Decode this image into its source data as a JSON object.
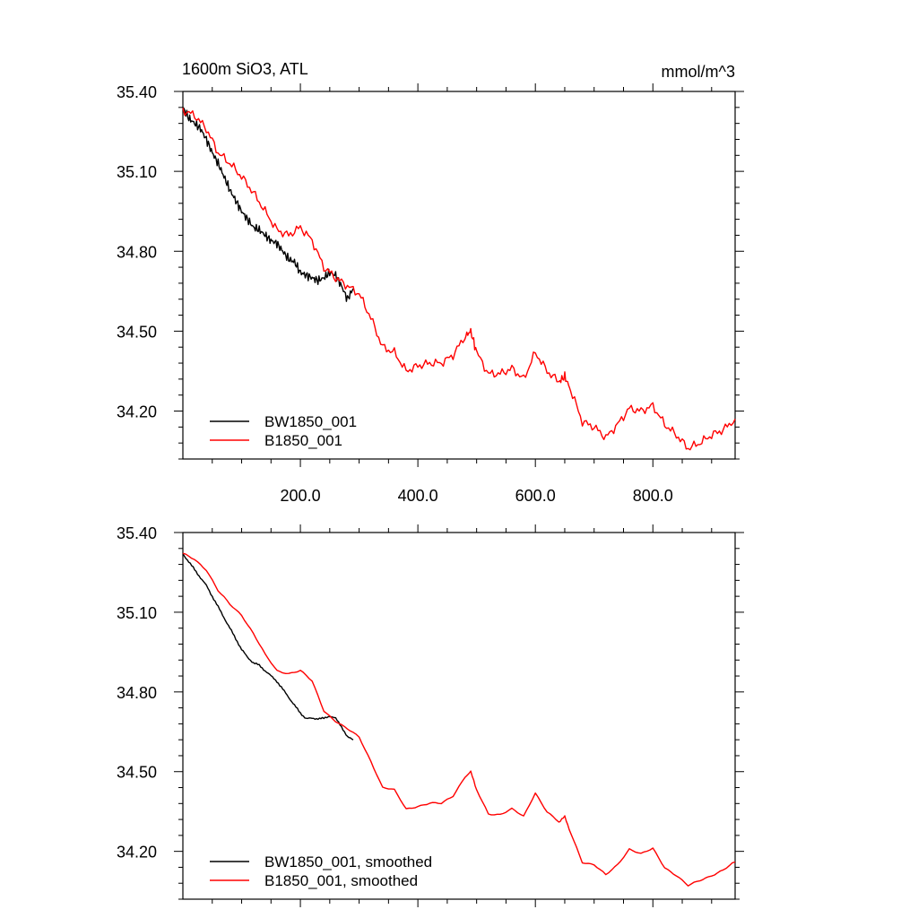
{
  "figure": {
    "title_left": "1600m SiO3, ATL",
    "title_right": "mmol/m^3"
  },
  "chart_data": [
    {
      "type": "line",
      "title": "1600m SiO3, ATL",
      "units": "mmol/m^3",
      "xlim": [
        0,
        940
      ],
      "ylim": [
        34.02,
        35.4
      ],
      "x_ticks": [
        200,
        400,
        600,
        800
      ],
      "x_tick_labels": [
        "200.0",
        "400.0",
        "600.0",
        "800.0"
      ],
      "y_ticks": [
        35.4,
        35.1,
        34.8,
        34.5,
        34.2
      ],
      "y_tick_labels": [
        "35.40",
        "35.10",
        "34.80",
        "34.50",
        "34.20"
      ],
      "legend_position": "bottom-left",
      "series": [
        {
          "name": "BW1850_001",
          "color": "#000000",
          "x": [
            0,
            10,
            20,
            30,
            40,
            50,
            60,
            70,
            80,
            90,
            100,
            110,
            120,
            130,
            140,
            150,
            160,
            170,
            180,
            190,
            200,
            210,
            220,
            230,
            240,
            250,
            260,
            270,
            280,
            290
          ],
          "y": [
            35.34,
            35.3,
            35.28,
            35.26,
            35.22,
            35.17,
            35.13,
            35.08,
            35.03,
            34.99,
            34.95,
            34.92,
            34.89,
            34.88,
            34.86,
            34.84,
            34.83,
            34.8,
            34.77,
            34.76,
            34.72,
            34.71,
            34.7,
            34.69,
            34.7,
            34.72,
            34.71,
            34.67,
            34.62,
            34.66
          ]
        },
        {
          "name": "B1850_001",
          "color": "#ff0000",
          "x": [
            0,
            20,
            40,
            60,
            80,
            100,
            120,
            140,
            160,
            180,
            200,
            220,
            240,
            260,
            280,
            300,
            320,
            340,
            360,
            380,
            400,
            420,
            440,
            460,
            480,
            490,
            500,
            520,
            540,
            560,
            580,
            600,
            620,
            640,
            650,
            660,
            680,
            700,
            720,
            740,
            760,
            780,
            800,
            820,
            840,
            860,
            880,
            900,
            920,
            940
          ],
          "y": [
            35.33,
            35.31,
            35.26,
            35.17,
            35.13,
            35.08,
            35.02,
            34.95,
            34.88,
            34.86,
            34.89,
            34.84,
            34.74,
            34.7,
            34.67,
            34.64,
            34.55,
            34.44,
            34.42,
            34.35,
            34.37,
            34.38,
            34.38,
            34.41,
            34.48,
            34.5,
            34.42,
            34.34,
            34.34,
            34.36,
            34.32,
            34.42,
            34.35,
            34.31,
            34.33,
            34.28,
            34.16,
            34.14,
            34.1,
            34.15,
            34.21,
            34.2,
            34.22,
            34.15,
            34.11,
            34.06,
            34.08,
            34.11,
            34.13,
            34.17
          ]
        }
      ]
    },
    {
      "type": "line",
      "xlim": [
        0,
        940
      ],
      "ylim": [
        34.02,
        35.4
      ],
      "y_ticks": [
        35.4,
        35.1,
        34.8,
        34.5,
        34.2
      ],
      "y_tick_labels": [
        "35.40",
        "35.10",
        "34.80",
        "34.50",
        "34.20"
      ],
      "legend_position": "bottom-left",
      "series": [
        {
          "name": "BW1850_001, smoothed",
          "color": "#000000",
          "x": [
            0,
            10,
            20,
            30,
            40,
            50,
            60,
            70,
            80,
            90,
            100,
            110,
            120,
            130,
            140,
            150,
            160,
            170,
            180,
            190,
            200,
            210,
            220,
            230,
            240,
            250,
            260,
            270,
            280,
            290
          ],
          "y": [
            35.32,
            35.29,
            35.26,
            35.23,
            35.2,
            35.16,
            35.12,
            35.08,
            35.04,
            35.0,
            34.96,
            34.93,
            34.91,
            34.9,
            34.88,
            34.86,
            34.84,
            34.81,
            34.78,
            34.75,
            34.72,
            34.7,
            34.7,
            34.7,
            34.7,
            34.71,
            34.7,
            34.67,
            34.63,
            34.62
          ]
        },
        {
          "name": "B1850_001, smoothed",
          "color": "#ff0000",
          "x": [
            0,
            20,
            40,
            60,
            80,
            100,
            120,
            140,
            160,
            180,
            200,
            220,
            240,
            260,
            280,
            300,
            320,
            340,
            360,
            380,
            400,
            420,
            440,
            460,
            480,
            490,
            500,
            520,
            540,
            560,
            580,
            600,
            620,
            640,
            650,
            660,
            680,
            700,
            720,
            740,
            760,
            780,
            800,
            820,
            840,
            860,
            880,
            900,
            920,
            940
          ],
          "y": [
            35.32,
            35.3,
            35.26,
            35.18,
            35.13,
            35.09,
            35.02,
            34.94,
            34.88,
            34.87,
            34.88,
            34.84,
            34.73,
            34.69,
            34.66,
            34.63,
            34.54,
            34.44,
            34.43,
            34.36,
            34.37,
            34.38,
            34.38,
            34.41,
            34.48,
            34.5,
            34.43,
            34.34,
            34.34,
            34.36,
            34.33,
            34.42,
            34.35,
            34.31,
            34.33,
            34.27,
            34.16,
            34.15,
            34.11,
            34.15,
            34.21,
            34.19,
            34.21,
            34.14,
            34.11,
            34.07,
            34.09,
            34.11,
            34.13,
            34.16
          ]
        }
      ]
    }
  ]
}
